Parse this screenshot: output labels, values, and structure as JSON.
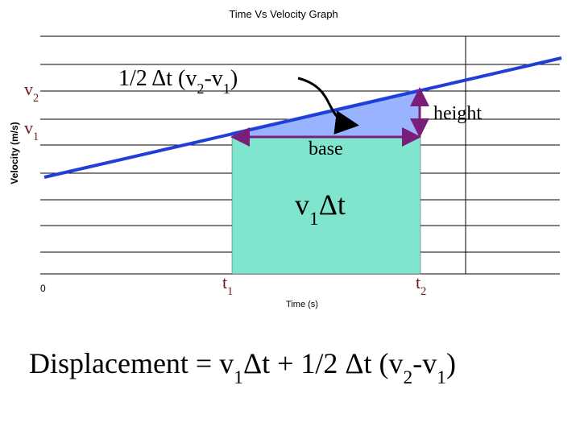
{
  "title": "Time Vs Velocity Graph",
  "y_axis_label": "Velocity (m/s)",
  "x_axis_label": "Time (s)",
  "origin_label": "0",
  "labels": [
    {
      "parts": [
        {
          "text": "v",
          "sub": false
        },
        {
          "text": "2",
          "sub": true
        }
      ]
    },
    {
      "parts": [
        {
          "text": "v",
          "sub": false
        },
        {
          "text": "1",
          "sub": true
        }
      ]
    },
    {
      "parts": [
        {
          "text": "1/2 Δt (v",
          "sub": false
        },
        {
          "text": "2",
          "sub": true
        },
        {
          "text": "-v",
          "sub": false
        },
        {
          "text": "1",
          "sub": true
        },
        {
          "text": ")",
          "sub": false
        }
      ]
    },
    {
      "parts": [
        {
          "text": "height",
          "sub": false
        }
      ]
    },
    {
      "parts": [
        {
          "text": "base",
          "sub": false
        }
      ]
    },
    {
      "parts": [
        {
          "text": "v",
          "sub": false
        },
        {
          "text": "1",
          "sub": true
        },
        {
          "text": "Δt",
          "sub": false
        }
      ]
    },
    {
      "parts": [
        {
          "text": "t",
          "sub": false
        },
        {
          "text": "1",
          "sub": true
        }
      ]
    },
    {
      "parts": [
        {
          "text": "t",
          "sub": false
        },
        {
          "text": "2",
          "sub": true
        }
      ]
    }
  ],
  "equation": {
    "parts": [
      {
        "text": "Displacement = v",
        "sub": false
      },
      {
        "text": "1",
        "sub": true
      },
      {
        "text": "Δt + 1/2 Δt (v",
        "sub": false
      },
      {
        "text": "2",
        "sub": true
      },
      {
        "text": "-v",
        "sub": false
      },
      {
        "text": "1",
        "sub": true
      },
      {
        "text": ")",
        "sub": false
      }
    ]
  }
}
